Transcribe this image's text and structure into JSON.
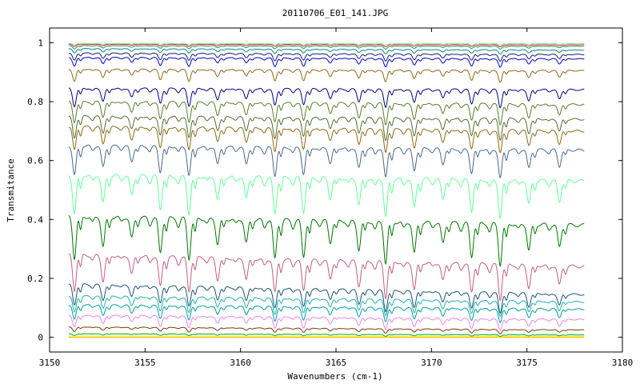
{
  "chart_data": {
    "type": "line",
    "title": "20110706_E01_141.JPG",
    "xlabel": "Wavenumbers (cm-1)",
    "ylabel": "Transmitance",
    "xlim": [
      3150,
      3180
    ],
    "ylim": [
      -0.05,
      1.05
    ],
    "x_ticks": [
      "3150",
      "3155",
      "3160",
      "3165",
      "3170",
      "3175",
      "3180"
    ],
    "y_ticks": [
      "0",
      "0.2",
      "0.4",
      "0.6",
      "0.8",
      "1"
    ],
    "x_range": [
      3151,
      3178
    ],
    "legend": "none",
    "grid": false,
    "line_centers": [
      3151.3,
      3152.8,
      3154.3,
      3155.8,
      3157.3,
      3158.8,
      3160.3,
      3161.8,
      3163.3,
      3164.7,
      3166.2,
      3167.6,
      3169.1,
      3170.6,
      3172.1,
      3173.6,
      3175.1,
      3176.7
    ],
    "series": [
      {
        "color": "#ffa500",
        "start": 0.0,
        "end": 0.0,
        "depth": 0.0
      },
      {
        "color": "#ffff00",
        "start": 0.004,
        "end": 0.003,
        "depth": 0.002
      },
      {
        "color": "#00aa00",
        "start": 0.012,
        "end": 0.008,
        "depth": 0.006
      },
      {
        "color": "#7a3c00",
        "start": 0.035,
        "end": 0.025,
        "depth": 0.015
      },
      {
        "color": "#ee82ee",
        "start": 0.075,
        "end": 0.06,
        "depth": 0.04
      },
      {
        "color": "#00a0a0",
        "start": 0.11,
        "end": 0.095,
        "depth": 0.05
      },
      {
        "color": "#20b2aa",
        "start": 0.14,
        "end": 0.12,
        "depth": 0.055
      },
      {
        "color": "#1a5276",
        "start": 0.18,
        "end": 0.145,
        "depth": 0.07
      },
      {
        "color": "#c06080",
        "start": 0.28,
        "end": 0.24,
        "depth": 0.12
      },
      {
        "color": "#007700",
        "start": 0.41,
        "end": 0.38,
        "depth": 0.14
      },
      {
        "color": "#66ff99",
        "start": 0.55,
        "end": 0.53,
        "depth": 0.13
      },
      {
        "color": "#4a6a8a",
        "start": 0.65,
        "end": 0.635,
        "depth": 0.1
      },
      {
        "color": "#8b6914",
        "start": 0.715,
        "end": 0.7,
        "depth": 0.08
      },
      {
        "color": "#556b2f",
        "start": 0.75,
        "end": 0.74,
        "depth": 0.075
      },
      {
        "color": "#5a7d2a",
        "start": 0.8,
        "end": 0.79,
        "depth": 0.07
      },
      {
        "color": "#000080",
        "start": 0.845,
        "end": 0.84,
        "depth": 0.06
      },
      {
        "color": "#8b6914",
        "start": 0.91,
        "end": 0.905,
        "depth": 0.04
      },
      {
        "color": "#0000cc",
        "start": 0.95,
        "end": 0.945,
        "depth": 0.03
      },
      {
        "color": "#191970",
        "start": 0.965,
        "end": 0.96,
        "depth": 0.025
      },
      {
        "color": "#008b8b",
        "start": 0.98,
        "end": 0.975,
        "depth": 0.015
      },
      {
        "color": "#2e8b57",
        "start": 0.99,
        "end": 0.988,
        "depth": 0.01
      },
      {
        "color": "#cc2222",
        "start": 0.995,
        "end": 0.993,
        "depth": 0.007
      },
      {
        "color": "#90ee90",
        "start": 0.998,
        "end": 0.997,
        "depth": 0.005
      }
    ]
  }
}
